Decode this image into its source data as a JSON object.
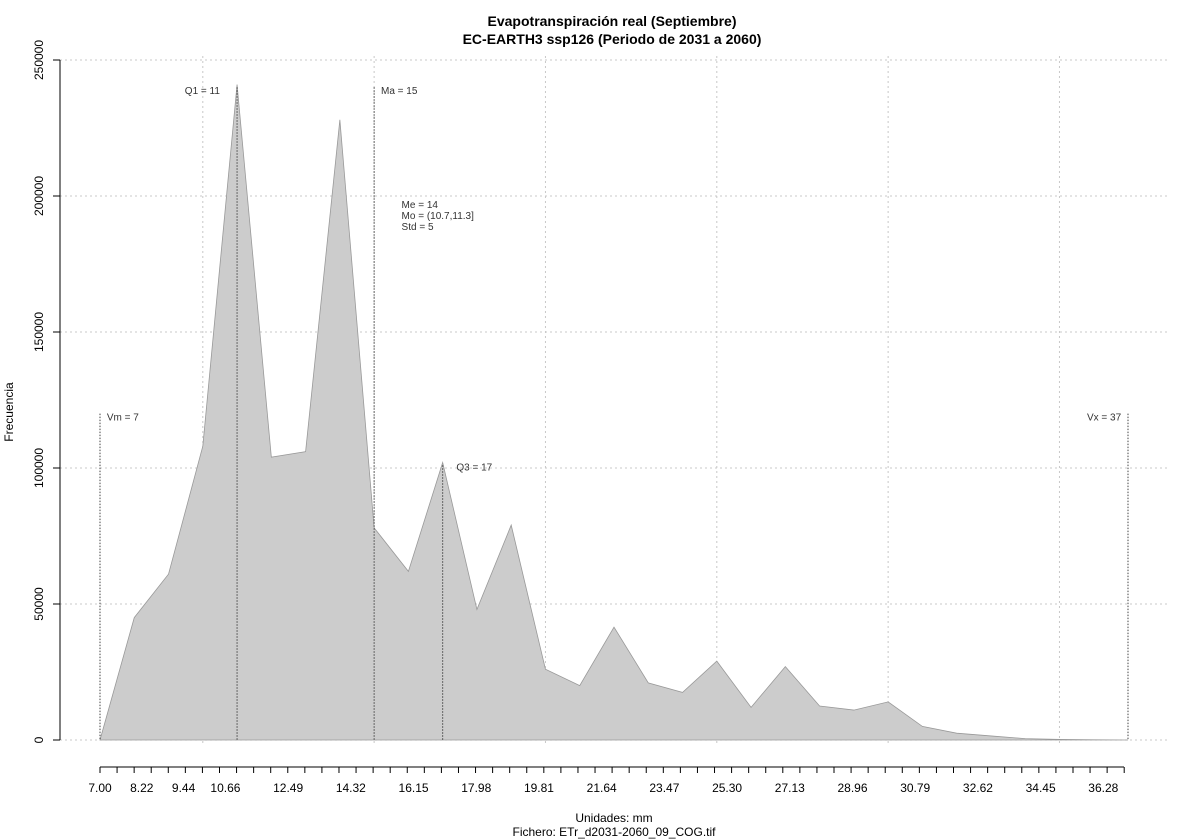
{
  "chart_data": {
    "type": "area",
    "title": "Evapotranspiración real (Septiembre)",
    "subtitle": "EC-EARTH3 ssp126 (Periodo de 2031 a 2060)",
    "xlabel": "Unidades: mm",
    "caption": "Fichero: ETr_d2031-2060_09_COG.tif",
    "ylabel": "Frecuencia",
    "xlim": [
      7.0,
      37.0
    ],
    "ylim": [
      0,
      250000
    ],
    "grid": true,
    "area_color": "#cccccc",
    "x_tick_labels": [
      "7.00",
      "8.22",
      "9.44",
      "10.66",
      "12.49",
      "14.32",
      "16.15",
      "17.98",
      "19.81",
      "21.64",
      "23.47",
      "25.30",
      "27.13",
      "28.96",
      "30.79",
      "32.62",
      "34.45",
      "36.28"
    ],
    "y_tick_labels": [
      "0",
      "50000",
      "100000",
      "150000",
      "200000",
      "250000"
    ],
    "x": [
      7.0,
      8.0,
      9.0,
      10.0,
      11.0,
      12.0,
      13.0,
      14.0,
      15.0,
      16.0,
      17.0,
      18.0,
      19.0,
      20.0,
      21.0,
      22.0,
      23.0,
      24.0,
      25.0,
      26.0,
      27.0,
      28.0,
      29.0,
      30.0,
      31.0,
      32.0,
      33.0,
      34.0,
      35.0,
      36.0,
      37.0
    ],
    "y": [
      0,
      45000,
      61000,
      108000,
      241000,
      104000,
      106000,
      228000,
      78000,
      62000,
      102000,
      48000,
      79000,
      26000,
      20000,
      41500,
      21000,
      17500,
      29000,
      12000,
      27000,
      12500,
      11000,
      14000,
      5000,
      2500,
      1500,
      500,
      200,
      100,
      0
    ],
    "markers": [
      {
        "name": "Vm",
        "label": "Vm = 7",
        "x": 7.0,
        "y_top": 120000,
        "text_x": 7.2,
        "text_y": 119000,
        "anchor": "start"
      },
      {
        "name": "Q1",
        "label": "Q1 = 11",
        "x": 11.0,
        "y_top": 240000,
        "text_x": 10.5,
        "text_y": 239000,
        "anchor": "end"
      },
      {
        "name": "Ma",
        "label": "Ma = 15",
        "x": 15.0,
        "y_top": 240000,
        "text_x": 15.2,
        "text_y": 239000,
        "anchor": "start"
      },
      {
        "name": "Q3",
        "label": "Q3 = 17",
        "x": 17.0,
        "y_top": 101000,
        "text_x": 17.4,
        "text_y": 100500,
        "anchor": "start"
      },
      {
        "name": "Vx",
        "label": "Vx = 37",
        "x": 37.0,
        "y_top": 120000,
        "text_x": 36.8,
        "text_y": 119000,
        "anchor": "end"
      }
    ],
    "stats": [
      {
        "label": "Me = 14",
        "x": 15.8,
        "y": 197000
      },
      {
        "label": "Mo = (10.7,11.3]",
        "x": 15.8,
        "y": 193000
      },
      {
        "label": "Std = 5",
        "x": 15.8,
        "y": 189000
      }
    ]
  }
}
